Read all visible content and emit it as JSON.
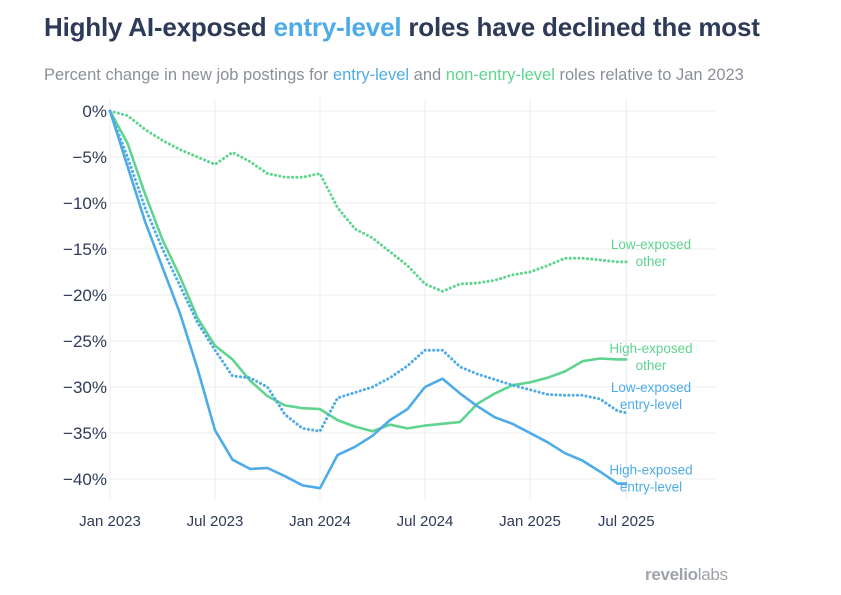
{
  "header": {
    "title_pre": "Highly AI-exposed ",
    "title_em": "entry-level",
    "title_post": " roles have declined the most",
    "subtitle_pre": "Percent change in new job postings for ",
    "subtitle_blue": "entry-level",
    "subtitle_mid": " and ",
    "subtitle_green": "non-entry-level",
    "subtitle_post": " roles relative to Jan 2023"
  },
  "logo": {
    "bold": "revelio",
    "light": "labs"
  },
  "colors": {
    "entry": "#4dabe8",
    "other": "#5fd48f",
    "grid": "#ececec",
    "axis_text": "#2d3b59"
  },
  "chart_data": {
    "type": "line",
    "title": "Highly AI-exposed entry-level roles have declined the most",
    "subtitle": "Percent change in new job postings for entry-level and non-entry-level roles relative to Jan 2023",
    "xlabel": "",
    "ylabel": "",
    "ylim": [
      -43,
      1.5
    ],
    "xlim": [
      0,
      31.5
    ],
    "yticks": [
      0,
      -5,
      -10,
      -15,
      -20,
      -25,
      -30,
      -35,
      -40
    ],
    "ytick_labels": [
      "0%",
      "−5%",
      "−10%",
      "−15%",
      "−20%",
      "−25%",
      "−30%",
      "−35%",
      "−40%"
    ],
    "xticks": [
      0,
      6,
      12,
      18,
      24,
      29.5
    ],
    "xtick_labels": [
      "Jan 2023",
      "Jul 2023",
      "Jan 2024",
      "Jul 2024",
      "Jan 2025",
      "Jul 2025"
    ],
    "x": [
      0,
      1,
      2,
      3,
      4,
      5,
      6,
      7,
      8,
      9,
      10,
      11,
      12,
      13,
      14,
      15,
      16,
      17,
      18,
      19,
      20,
      21,
      22,
      23,
      24,
      25,
      26,
      27,
      28,
      29,
      29.5
    ],
    "series": [
      {
        "name": "Low-exposed other",
        "label_lines": [
          "Low-exposed",
          "other"
        ],
        "color_key": "other",
        "dashed": true,
        "values": [
          0,
          -0.5,
          -2,
          -3.2,
          -4.2,
          -5,
          -5.8,
          -4.5,
          -5.5,
          -6.8,
          -7.2,
          -7.2,
          -6.8,
          -10.5,
          -12.8,
          -13.8,
          -15.3,
          -16.8,
          -18.8,
          -19.6,
          -18.8,
          -18.7,
          -18.4,
          -17.8,
          -17.5,
          -16.8,
          -16,
          -16,
          -16.2,
          -16.4,
          -16.4
        ],
        "label_anchor": {
          "x": 29.2,
          "y": -16
        }
      },
      {
        "name": "High-exposed other",
        "label_lines": [
          "High-exposed",
          "other"
        ],
        "color_key": "other",
        "dashed": false,
        "values": [
          0,
          -3.5,
          -9,
          -14,
          -18,
          -22.5,
          -25.5,
          -27,
          -29.3,
          -31,
          -32,
          -32.3,
          -32.4,
          -33.6,
          -34.3,
          -34.8,
          -34.1,
          -34.5,
          -34.2,
          -34,
          -33.8,
          -31.8,
          -30.7,
          -29.8,
          -29.5,
          -29,
          -28.3,
          -27.2,
          -26.9,
          -27,
          -27
        ],
        "label_anchor": {
          "x": 29.2,
          "y": -27.3
        }
      },
      {
        "name": "Low-exposed entry-level",
        "label_lines": [
          "Low-exposed",
          "entry-level"
        ],
        "color_key": "entry",
        "dashed": true,
        "values": [
          0,
          -5,
          -10.5,
          -15,
          -19,
          -23,
          -26,
          -28.8,
          -29,
          -30,
          -33,
          -34.5,
          -34.8,
          -31.2,
          -30.6,
          -30,
          -29,
          -27.7,
          -26,
          -26,
          -27.8,
          -28.6,
          -29.2,
          -29.8,
          -30.3,
          -30.8,
          -30.9,
          -30.9,
          -31.3,
          -32.6,
          -32.8
        ],
        "label_anchor": {
          "x": 29.2,
          "y": -31.5
        }
      },
      {
        "name": "High-exposed entry-level",
        "label_lines": [
          "High-exposed",
          "entry-level"
        ],
        "color_key": "entry",
        "dashed": false,
        "values": [
          0,
          -6,
          -12,
          -17,
          -22,
          -28,
          -34.7,
          -37.9,
          -38.9,
          -38.8,
          -39.7,
          -40.7,
          -41,
          -37.4,
          -36.5,
          -35.3,
          -33.6,
          -32.4,
          -30,
          -29.1,
          -30.7,
          -32.1,
          -33.3,
          -34,
          -35,
          -36,
          -37.2,
          -38,
          -39.2,
          -40.5,
          -40.5
        ],
        "label_anchor": {
          "x": 29.2,
          "y": -40.5
        }
      }
    ]
  }
}
